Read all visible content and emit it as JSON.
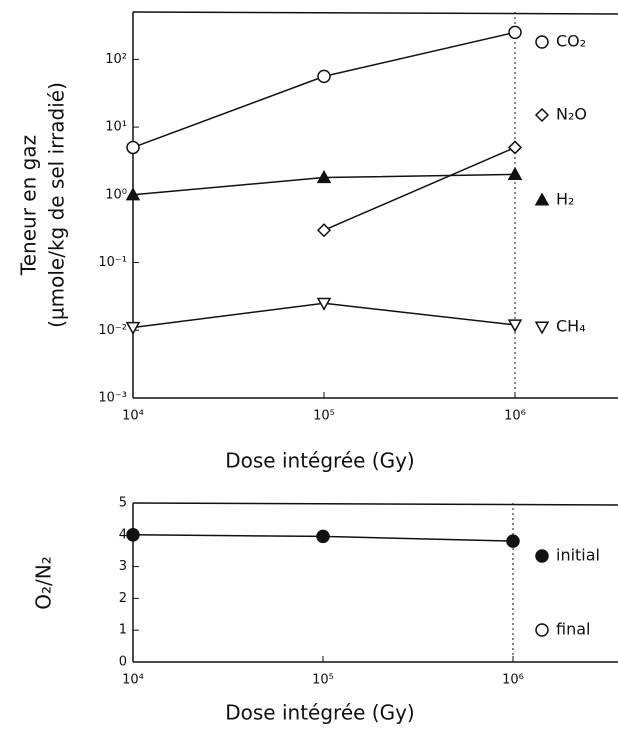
{
  "chart_data": [
    {
      "type": "line",
      "xlog": true,
      "ylog": true,
      "x_label": "Dose intégrée (Gy)",
      "y_label": [
        "Teneur en gaz",
        "(µmole/kg de sel irradié)"
      ],
      "x": [
        10000,
        100000,
        1000000
      ],
      "xlim": [
        10000,
        1000000
      ],
      "xticks": [
        {
          "value": 10000,
          "label": "10⁴"
        },
        {
          "value": 100000,
          "label": "10⁵"
        },
        {
          "value": 1000000,
          "label": "10⁶"
        }
      ],
      "ylim": [
        0.001,
        500
      ],
      "yticks": [
        {
          "value": 0.001,
          "label": "10⁻³"
        },
        {
          "value": 0.01,
          "label": "10⁻²"
        },
        {
          "value": 0.1,
          "label": "10⁻¹"
        },
        {
          "value": 1,
          "label": "10⁰"
        },
        {
          "value": 10,
          "label": "10¹"
        },
        {
          "value": 100,
          "label": "10²"
        }
      ],
      "series": [
        {
          "name": "CO₂",
          "color": "#111111",
          "marker": "circle",
          "values": [
            5,
            56,
            250
          ]
        },
        {
          "name": "N₂O",
          "color": "#111111",
          "marker": "diamond",
          "values": [
            null,
            0.3,
            5
          ]
        },
        {
          "name": "H₂",
          "color": "#111111",
          "marker": "triangle",
          "values": [
            1,
            1.8,
            2
          ]
        },
        {
          "name": "CH₄",
          "color": "#111111",
          "marker": "triangle-down",
          "values": [
            0.011,
            0.025,
            0.012
          ]
        }
      ]
    },
    {
      "type": "line",
      "xlog": true,
      "ylog": false,
      "x_label": "Dose intégrée (Gy)",
      "y_label": [
        "O₂/N₂"
      ],
      "x": [
        10000,
        100000,
        1000000
      ],
      "xlim": [
        10000,
        1000000
      ],
      "xticks": [
        {
          "value": 10000,
          "label": "10⁴"
        },
        {
          "value": 100000,
          "label": "10⁵"
        },
        {
          "value": 1000000,
          "label": "10⁶"
        }
      ],
      "ylim": [
        0,
        5
      ],
      "yticks": [
        0,
        1,
        2,
        3,
        4,
        5
      ],
      "series": [
        {
          "name": "initial",
          "color": "#111111",
          "marker": "circle-filled",
          "values": [
            4.0,
            3.95,
            3.8
          ]
        },
        {
          "name": "final",
          "color": "#111111",
          "marker": "circle",
          "values": [
            null,
            null,
            null
          ]
        }
      ]
    }
  ]
}
